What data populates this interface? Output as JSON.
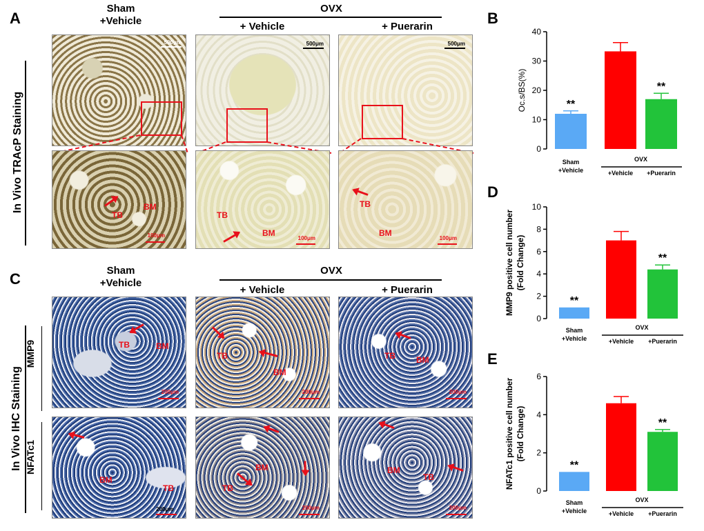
{
  "panels": {
    "a": {
      "letter": "A",
      "header_sham_line1": "Sham",
      "header_sham_line2": "+Vehicle",
      "header_ovx": "OVX",
      "header_vehicle": "+ Vehicle",
      "header_puerarin": "+ Puerarin",
      "side_label": "In Vivo TRAcP Staining",
      "scale_top": "500μm",
      "scale_bottom": "100μm",
      "tissue_tb": "TB",
      "tissue_bm": "BM"
    },
    "c": {
      "letter": "C",
      "header_sham_line1": "Sham",
      "header_sham_line2": "+Vehicle",
      "header_ovx": "OVX",
      "header_vehicle": "+ Vehicle",
      "header_puerarin": "+ Puerarin",
      "side_label": "In Vivo IHC Staining",
      "row1_label": "MMP9",
      "row2_label": "NFATc1",
      "scale": "200μm",
      "tissue_tb": "TB",
      "tissue_bm": "BM"
    }
  },
  "colors": {
    "sham": "#5aa9f5",
    "ovx_vehicle": "#ff0000",
    "ovx_puerarin": "#22c33a",
    "annotation": "#e8101a"
  },
  "chart_data": [
    {
      "panel": "B",
      "type": "bar",
      "categories": [
        "Sham +Vehicle",
        "OVX +Vehicle",
        "OVX +Puerarin"
      ],
      "category_line1": [
        "Sham",
        "+Vehicle",
        "+Puerarin"
      ],
      "category_line2": [
        "+Vehicle",
        "",
        ""
      ],
      "values": [
        12,
        33.3,
        17
      ],
      "errors": [
        1,
        3,
        2
      ],
      "significance": [
        "**",
        "",
        "**"
      ],
      "ylabel": "Oc.s/BS(%)",
      "ylim": [
        0,
        40
      ],
      "yticks": [
        0,
        10,
        20,
        30,
        40
      ],
      "group_label": "OVX"
    },
    {
      "panel": "D",
      "type": "bar",
      "categories": [
        "Sham +Vehicle",
        "OVX +Vehicle",
        "OVX +Puerarin"
      ],
      "category_line1": [
        "Sham",
        "+Vehicle",
        "+Puerarin"
      ],
      "category_line2": [
        "+Vehicle",
        "",
        ""
      ],
      "values": [
        1,
        7,
        4.4
      ],
      "errors": [
        0,
        0.8,
        0.4
      ],
      "significance": [
        "**",
        "",
        "**"
      ],
      "ylabel_line1": "MMP9 positive cell  number",
      "ylabel_line2": "(Fold Change)",
      "ylim": [
        0,
        10
      ],
      "yticks": [
        0,
        2,
        4,
        6,
        8,
        10
      ],
      "group_label": "OVX"
    },
    {
      "panel": "E",
      "type": "bar",
      "categories": [
        "Sham +Vehicle",
        "OVX +Vehicle",
        "OVX +Puerarin"
      ],
      "category_line1": [
        "Sham",
        "+Vehicle",
        "+Puerarin"
      ],
      "category_line2": [
        "+Vehicle",
        "",
        ""
      ],
      "values": [
        1,
        4.6,
        3.1
      ],
      "errors": [
        0,
        0.35,
        0.12
      ],
      "significance": [
        "**",
        "",
        "**"
      ],
      "ylabel_line1": "NFATc1 positive cell  number",
      "ylabel_line2": "(Fold Change)",
      "ylim": [
        0,
        6
      ],
      "yticks": [
        0,
        2,
        4,
        6
      ],
      "group_label": "OVX"
    }
  ]
}
